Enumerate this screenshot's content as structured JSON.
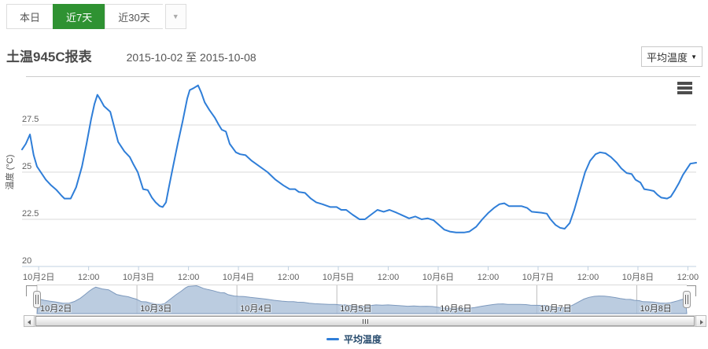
{
  "toolbar": {
    "tabs": [
      {
        "label": "本日",
        "active": false
      },
      {
        "label": "近7天",
        "active": true
      },
      {
        "label": "近30天",
        "active": false
      }
    ],
    "more_caret": "▼"
  },
  "header": {
    "title": "土温945C报表",
    "date_range": "2015-10-02 至 2015-10-08",
    "series_select": {
      "value": "平均温度",
      "caret": "▼"
    }
  },
  "legend": {
    "items": [
      {
        "label": "平均温度",
        "color": "#2f7ed8"
      }
    ]
  },
  "colors": {
    "active_tab_bg": "#2f9232",
    "series_line": "#2f7ed8",
    "grid_line": "#d8d8d8",
    "axis_line": "#c0d0e0",
    "axis_label": "#606060",
    "navigator_fill": "#aabfd8",
    "navigator_stroke": "#7d99bd",
    "legend_text": "#274b6d"
  },
  "chart_data": {
    "type": "line",
    "title": "",
    "xlabel": "",
    "ylabel": "温度 (°C)",
    "y_range": [
      20,
      30
    ],
    "y_ticks": [
      20,
      22.5,
      25,
      27.5
    ],
    "x_unit_hours_origin": "2015-10-01 20:00",
    "x_range": [
      0,
      162
    ],
    "x_ticks": [
      {
        "t": 4,
        "label": "10月2日"
      },
      {
        "t": 16,
        "label": "12:00"
      },
      {
        "t": 28,
        "label": "10月3日"
      },
      {
        "t": 40,
        "label": "12:00"
      },
      {
        "t": 52,
        "label": "10月4日"
      },
      {
        "t": 64,
        "label": "12:00"
      },
      {
        "t": 76,
        "label": "10月5日"
      },
      {
        "t": 88,
        "label": "12:00"
      },
      {
        "t": 100,
        "label": "10月6日"
      },
      {
        "t": 112,
        "label": "12:00"
      },
      {
        "t": 124,
        "label": "10月7日"
      },
      {
        "t": 136,
        "label": "12:00"
      },
      {
        "t": 148,
        "label": "10月8日"
      },
      {
        "t": 160,
        "label": "12:00"
      }
    ],
    "series": [
      {
        "name": "平均温度",
        "color": "#2f7ed8",
        "points": [
          [
            0,
            26.2
          ],
          [
            0.9,
            26.5
          ],
          [
            1.9,
            27.0
          ],
          [
            2.8,
            25.9
          ],
          [
            3.6,
            25.3
          ],
          [
            4.5,
            25.0
          ],
          [
            5.7,
            24.6
          ],
          [
            7,
            24.3
          ],
          [
            8.3,
            24.05
          ],
          [
            9.5,
            23.75
          ],
          [
            10.2,
            23.6
          ],
          [
            11.7,
            23.6
          ],
          [
            13,
            24.2
          ],
          [
            14.4,
            25.3
          ],
          [
            15.5,
            26.5
          ],
          [
            16.6,
            27.8
          ],
          [
            17.4,
            28.6
          ],
          [
            18.1,
            29.1
          ],
          [
            18.7,
            28.9
          ],
          [
            19.7,
            28.5
          ],
          [
            21.2,
            28.2
          ],
          [
            23.1,
            26.6
          ],
          [
            24.6,
            26.1
          ],
          [
            25.9,
            25.8
          ],
          [
            26.8,
            25.4
          ],
          [
            27.8,
            25.0
          ],
          [
            29.1,
            24.1
          ],
          [
            30.2,
            24.05
          ],
          [
            31.2,
            23.65
          ],
          [
            32.1,
            23.4
          ],
          [
            33.1,
            23.2
          ],
          [
            33.8,
            23.15
          ],
          [
            34.6,
            23.4
          ],
          [
            35.3,
            24.2
          ],
          [
            36.3,
            25.3
          ],
          [
            37.4,
            26.5
          ],
          [
            38.6,
            27.7
          ],
          [
            39.7,
            28.9
          ],
          [
            40.3,
            29.35
          ],
          [
            41.2,
            29.45
          ],
          [
            42.3,
            29.6
          ],
          [
            43.1,
            29.2
          ],
          [
            43.9,
            28.7
          ],
          [
            45,
            28.3
          ],
          [
            46.3,
            27.9
          ],
          [
            47.3,
            27.5
          ],
          [
            48,
            27.25
          ],
          [
            49,
            27.15
          ],
          [
            49.9,
            26.5
          ],
          [
            51.4,
            26.05
          ],
          [
            52.4,
            25.95
          ],
          [
            53.7,
            25.9
          ],
          [
            55.2,
            25.6
          ],
          [
            57.1,
            25.3
          ],
          [
            59,
            25.0
          ],
          [
            60.9,
            24.6
          ],
          [
            62.8,
            24.3
          ],
          [
            64.3,
            24.1
          ],
          [
            65.6,
            24.1
          ],
          [
            66.5,
            23.95
          ],
          [
            68,
            23.9
          ],
          [
            69.4,
            23.6
          ],
          [
            70.7,
            23.4
          ],
          [
            72.2,
            23.3
          ],
          [
            74.1,
            23.15
          ],
          [
            75.6,
            23.15
          ],
          [
            76.7,
            23.0
          ],
          [
            77.9,
            23.0
          ],
          [
            79.4,
            22.75
          ],
          [
            81.1,
            22.5
          ],
          [
            82.4,
            22.5
          ],
          [
            83.9,
            22.75
          ],
          [
            85.4,
            23.0
          ],
          [
            86.9,
            22.9
          ],
          [
            88.3,
            23.0
          ],
          [
            90,
            22.85
          ],
          [
            91.5,
            22.7
          ],
          [
            93,
            22.55
          ],
          [
            94.5,
            22.65
          ],
          [
            96,
            22.5
          ],
          [
            97.5,
            22.55
          ],
          [
            98.9,
            22.45
          ],
          [
            100.2,
            22.2
          ],
          [
            101.5,
            21.95
          ],
          [
            102.8,
            21.85
          ],
          [
            104.3,
            21.8
          ],
          [
            106.2,
            21.8
          ],
          [
            107.5,
            21.85
          ],
          [
            109.1,
            22.1
          ],
          [
            110.6,
            22.5
          ],
          [
            112.1,
            22.85
          ],
          [
            113.4,
            23.1
          ],
          [
            114.7,
            23.3
          ],
          [
            115.9,
            23.35
          ],
          [
            117,
            23.2
          ],
          [
            118.5,
            23.2
          ],
          [
            120,
            23.2
          ],
          [
            121.4,
            23.1
          ],
          [
            122.5,
            22.9
          ],
          [
            124.8,
            22.85
          ],
          [
            126.1,
            22.8
          ],
          [
            127,
            22.5
          ],
          [
            128.2,
            22.2
          ],
          [
            129.3,
            22.05
          ],
          [
            130.4,
            22.0
          ],
          [
            131.6,
            22.3
          ],
          [
            132.7,
            23.0
          ],
          [
            134,
            24.0
          ],
          [
            135.3,
            25.0
          ],
          [
            136.5,
            25.6
          ],
          [
            137.8,
            25.95
          ],
          [
            138.9,
            26.05
          ],
          [
            140.2,
            26.0
          ],
          [
            141.5,
            25.8
          ],
          [
            142.9,
            25.5
          ],
          [
            144,
            25.2
          ],
          [
            145.3,
            24.95
          ],
          [
            146.5,
            24.9
          ],
          [
            147.4,
            24.6
          ],
          [
            148.6,
            24.45
          ],
          [
            149.5,
            24.1
          ],
          [
            150.8,
            24.05
          ],
          [
            151.8,
            24.0
          ],
          [
            152.7,
            23.8
          ],
          [
            153.6,
            23.65
          ],
          [
            155,
            23.6
          ],
          [
            155.9,
            23.7
          ],
          [
            156.9,
            24.05
          ],
          [
            157.8,
            24.4
          ],
          [
            158.8,
            24.85
          ],
          [
            159.7,
            25.15
          ],
          [
            160.6,
            25.45
          ],
          [
            162,
            25.5
          ]
        ]
      }
    ],
    "navigator": {
      "x_range": [
        4,
        160
      ],
      "day_ticks": [
        {
          "t": 4,
          "label": "10月2日"
        },
        {
          "t": 28,
          "label": "10月3日"
        },
        {
          "t": 52,
          "label": "10月4日"
        },
        {
          "t": 76,
          "label": "10月5日"
        },
        {
          "t": 100,
          "label": "10月6日"
        },
        {
          "t": 124,
          "label": "10月7日"
        },
        {
          "t": 148,
          "label": "10月8日"
        }
      ]
    }
  }
}
